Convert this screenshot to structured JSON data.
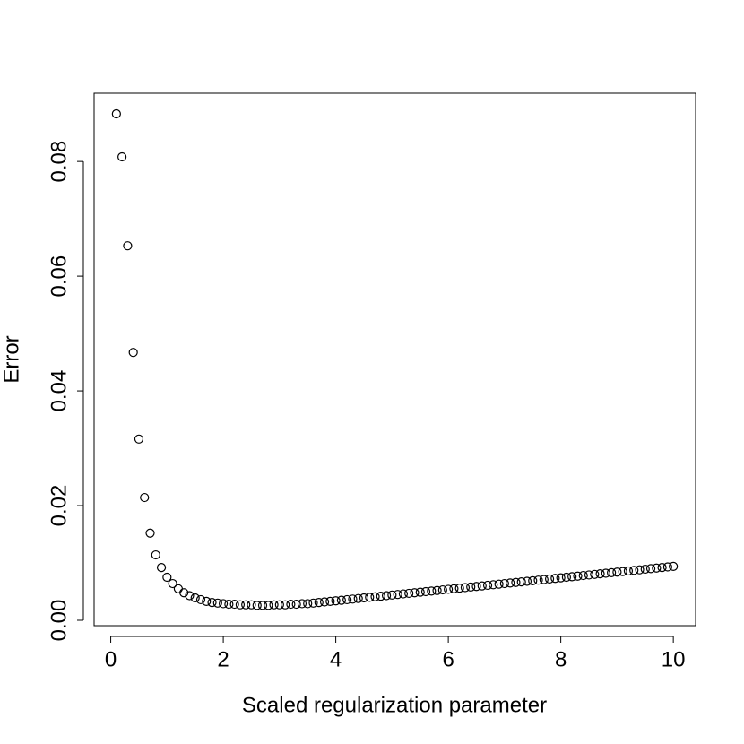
{
  "chart_data": {
    "type": "scatter",
    "xlabel": "Scaled regularization parameter",
    "ylabel": "Error",
    "x": [
      0.1,
      0.2,
      0.3,
      0.4,
      0.5,
      0.6,
      0.7,
      0.8,
      0.9,
      1.0,
      1.1,
      1.2,
      1.3,
      1.4,
      1.5,
      1.6,
      1.7,
      1.8,
      1.9,
      2.0,
      2.1,
      2.2,
      2.3,
      2.4,
      2.5,
      2.6,
      2.7,
      2.8,
      2.9,
      3.0,
      3.1,
      3.2,
      3.3,
      3.4,
      3.5,
      3.6,
      3.7,
      3.8,
      3.9,
      4.0,
      4.1,
      4.2,
      4.3,
      4.4,
      4.5,
      4.6,
      4.7,
      4.8,
      4.9,
      5.0,
      5.1,
      5.2,
      5.3,
      5.4,
      5.5,
      5.6,
      5.7,
      5.8,
      5.9,
      6.0,
      6.1,
      6.2,
      6.3,
      6.4,
      6.5,
      6.6,
      6.7,
      6.8,
      6.9,
      7.0,
      7.1,
      7.2,
      7.3,
      7.4,
      7.5,
      7.6,
      7.7,
      7.8,
      7.9,
      8.0,
      8.1,
      8.2,
      8.3,
      8.4,
      8.5,
      8.6,
      8.7,
      8.8,
      8.9,
      9.0,
      9.1,
      9.2,
      9.3,
      9.4,
      9.5,
      9.6,
      9.7,
      9.8,
      9.9,
      10.0
    ],
    "values": [
      0.0883,
      0.0808,
      0.0653,
      0.0467,
      0.0316,
      0.0214,
      0.0152,
      0.0114,
      0.0092,
      0.0075,
      0.0064,
      0.0055,
      0.0048,
      0.0043,
      0.0039,
      0.0036,
      0.0033,
      0.0031,
      0.003,
      0.0029,
      0.0028,
      0.0028,
      0.0027,
      0.0027,
      0.0027,
      0.0026,
      0.0026,
      0.0026,
      0.0027,
      0.0027,
      0.0027,
      0.0028,
      0.0028,
      0.0029,
      0.0029,
      0.003,
      0.0031,
      0.0032,
      0.0033,
      0.0034,
      0.0035,
      0.0036,
      0.0037,
      0.0038,
      0.0039,
      0.004,
      0.0041,
      0.0042,
      0.0043,
      0.0044,
      0.0045,
      0.0046,
      0.0047,
      0.0048,
      0.0049,
      0.005,
      0.0051,
      0.0052,
      0.0053,
      0.0054,
      0.0055,
      0.0056,
      0.0057,
      0.0058,
      0.0059,
      0.006,
      0.0061,
      0.0062,
      0.0063,
      0.0064,
      0.0065,
      0.0066,
      0.0067,
      0.0068,
      0.0069,
      0.007,
      0.0071,
      0.0072,
      0.0073,
      0.0074,
      0.0075,
      0.0076,
      0.0077,
      0.0078,
      0.0079,
      0.008,
      0.0081,
      0.0082,
      0.0083,
      0.0084,
      0.0085,
      0.0086,
      0.0087,
      0.0088,
      0.0089,
      0.009,
      0.0091,
      0.0092,
      0.0093,
      0.0094
    ],
    "color": "#000000",
    "xlim": [
      -0.296,
      10.396
    ],
    "ylim": [
      -0.00094,
      0.0919
    ],
    "xticks": [
      0,
      2,
      4,
      6,
      8,
      10
    ],
    "yticks": [
      {
        "value": 0,
        "label": "0.00"
      },
      {
        "value": 0.02,
        "label": "0.02"
      },
      {
        "value": 0.04,
        "label": "0.04"
      },
      {
        "value": 0.06,
        "label": "0.06"
      },
      {
        "value": 0.08,
        "label": "0.08"
      }
    ],
    "grid": false
  }
}
